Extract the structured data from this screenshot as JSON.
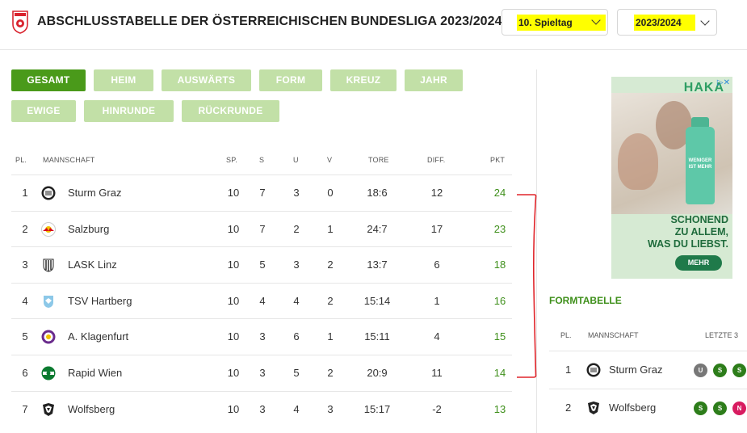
{
  "header": {
    "title": "ABSCHLUSSTABELLE DER ÖSTERREICHISCHEN BUNDESLIGA 2023/2024",
    "matchday_select": "10. Spieltag",
    "season_select": "2023/2024",
    "highlight_color": "#ffff00"
  },
  "tabs": [
    {
      "label": "GESAMT",
      "active": true
    },
    {
      "label": "HEIM",
      "active": false
    },
    {
      "label": "AUSWÄRTS",
      "active": false
    },
    {
      "label": "FORM",
      "active": false
    },
    {
      "label": "KREUZ",
      "active": false
    },
    {
      "label": "JAHR",
      "active": false
    },
    {
      "label": "EWIGE",
      "active": false
    },
    {
      "label": "HINRUNDE",
      "active": false
    },
    {
      "label": "RÜCKRUNDE",
      "active": false
    }
  ],
  "table": {
    "columns": [
      "PL.",
      "MANNSCHAFT",
      "SP.",
      "S",
      "U",
      "V",
      "TORE",
      "DIFF.",
      "PKT"
    ],
    "rows": [
      {
        "pl": "1",
        "team": "Sturm Graz",
        "crest": "sturm-graz-crest",
        "sp": "10",
        "s": "7",
        "u": "3",
        "v": "0",
        "tore": "18:6",
        "diff": "12",
        "pkt": "24"
      },
      {
        "pl": "2",
        "team": "Salzburg",
        "crest": "salzburg-crest",
        "sp": "10",
        "s": "7",
        "u": "2",
        "v": "1",
        "tore": "24:7",
        "diff": "17",
        "pkt": "23"
      },
      {
        "pl": "3",
        "team": "LASK Linz",
        "crest": "lask-crest",
        "sp": "10",
        "s": "5",
        "u": "3",
        "v": "2",
        "tore": "13:7",
        "diff": "6",
        "pkt": "18"
      },
      {
        "pl": "4",
        "team": "TSV Hartberg",
        "crest": "hartberg-crest",
        "sp": "10",
        "s": "4",
        "u": "4",
        "v": "2",
        "tore": "15:14",
        "diff": "1",
        "pkt": "16"
      },
      {
        "pl": "5",
        "team": "A. Klagenfurt",
        "crest": "klagenfurt-crest",
        "sp": "10",
        "s": "3",
        "u": "6",
        "v": "1",
        "tore": "15:11",
        "diff": "4",
        "pkt": "15"
      },
      {
        "pl": "6",
        "team": "Rapid Wien",
        "crest": "rapid-crest",
        "sp": "10",
        "s": "3",
        "u": "5",
        "v": "2",
        "tore": "20:9",
        "diff": "11",
        "pkt": "14"
      },
      {
        "pl": "7",
        "team": "Wolfsberg",
        "crest": "wolfsberg-crest",
        "sp": "10",
        "s": "3",
        "u": "4",
        "v": "3",
        "tore": "15:17",
        "diff": "-2",
        "pkt": "13"
      }
    ]
  },
  "ad": {
    "brand": "HAKA",
    "bottle_text": "WENIGER IST MEHR",
    "slogan_line1": "SCHONEND",
    "slogan_line2": "ZU ALLEM,",
    "slogan_line3": "WAS DU LIEBST.",
    "button": "MEHR"
  },
  "formtabelle": {
    "title": "FORMTABELLE",
    "columns": [
      "PL.",
      "MANNSCHAFT",
      "LETZTE 3"
    ],
    "rows": [
      {
        "pl": "1",
        "team": "Sturm Graz",
        "form": [
          "U",
          "S",
          "S"
        ]
      },
      {
        "pl": "2",
        "team": "Wolfsberg",
        "form": [
          "S",
          "S",
          "N"
        ]
      }
    ]
  },
  "colors": {
    "accent_green": "#4a9a1a",
    "tab_inactive": "#c2e0a7",
    "points_green": "#3e8f1a",
    "win": "#2d7d1a",
    "draw": "#777777",
    "loss": "#d81b60",
    "bracket_red": "#e0252b"
  }
}
